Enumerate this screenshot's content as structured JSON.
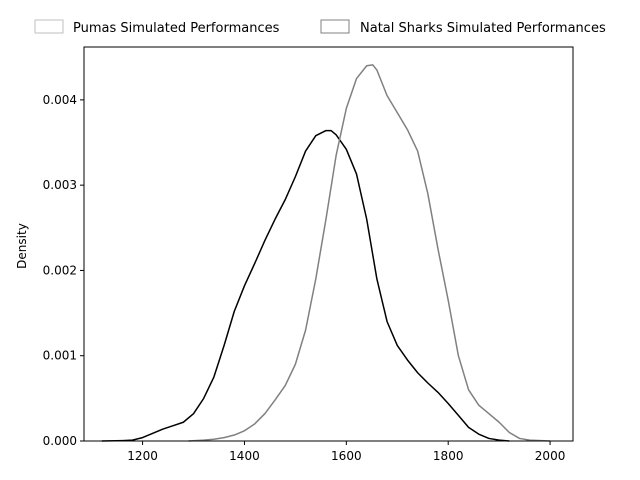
{
  "chart_data": {
    "type": "line",
    "subtype": "kde-density",
    "title": "",
    "xlabel": "",
    "ylabel": "Density",
    "xlim": [
      1085,
      2045
    ],
    "ylim": [
      0,
      0.00462
    ],
    "x_ticks": [
      1200,
      1400,
      1600,
      1800,
      2000
    ],
    "y_ticks": [
      0.0,
      0.001,
      0.002,
      0.003,
      0.004
    ],
    "y_tick_labels": [
      "0.000",
      "0.001",
      "0.002",
      "0.003",
      "0.004"
    ],
    "grid": false,
    "legend": {
      "placement": "top-outside",
      "entries": [
        {
          "label": "Pumas Simulated Performances",
          "edge_color": "#bfbfbf"
        },
        {
          "label": "Natal Sharks Simulated Performances",
          "edge_color": "#808080"
        }
      ]
    },
    "series": [
      {
        "color": "#000000",
        "points": [
          [
            1120,
            0.0
          ],
          [
            1160,
            5e-06
          ],
          [
            1180,
            1e-05
          ],
          [
            1200,
            4e-05
          ],
          [
            1220,
            9e-05
          ],
          [
            1240,
            0.00014
          ],
          [
            1260,
            0.00018
          ],
          [
            1280,
            0.00022
          ],
          [
            1300,
            0.00032
          ],
          [
            1320,
            0.0005
          ],
          [
            1340,
            0.00075
          ],
          [
            1360,
            0.00112
          ],
          [
            1380,
            0.00152
          ],
          [
            1400,
            0.00182
          ],
          [
            1420,
            0.00208
          ],
          [
            1440,
            0.00235
          ],
          [
            1460,
            0.0026
          ],
          [
            1480,
            0.00283
          ],
          [
            1500,
            0.0031
          ],
          [
            1520,
            0.0034
          ],
          [
            1540,
            0.00358
          ],
          [
            1560,
            0.00364
          ],
          [
            1570,
            0.00364
          ],
          [
            1580,
            0.00359
          ],
          [
            1600,
            0.00342
          ],
          [
            1620,
            0.00313
          ],
          [
            1640,
            0.0026
          ],
          [
            1660,
            0.0019
          ],
          [
            1680,
            0.0014
          ],
          [
            1700,
            0.00112
          ],
          [
            1720,
            0.00095
          ],
          [
            1740,
            0.0008
          ],
          [
            1760,
            0.00068
          ],
          [
            1780,
            0.00057
          ],
          [
            1800,
            0.00044
          ],
          [
            1820,
            0.0003
          ],
          [
            1840,
            0.00016
          ],
          [
            1860,
            8e-05
          ],
          [
            1880,
            3e-05
          ],
          [
            1900,
            1e-05
          ],
          [
            1920,
            0.0
          ]
        ]
      },
      {
        "color": "#808080",
        "points": [
          [
            1290,
            0.0
          ],
          [
            1320,
            1e-05
          ],
          [
            1340,
            2e-05
          ],
          [
            1360,
            4e-05
          ],
          [
            1380,
            7e-05
          ],
          [
            1400,
            0.00012
          ],
          [
            1420,
            0.0002
          ],
          [
            1440,
            0.00032
          ],
          [
            1460,
            0.00048
          ],
          [
            1480,
            0.00065
          ],
          [
            1500,
            0.0009
          ],
          [
            1520,
            0.0013
          ],
          [
            1540,
            0.0019
          ],
          [
            1560,
            0.0026
          ],
          [
            1580,
            0.00335
          ],
          [
            1600,
            0.0039
          ],
          [
            1620,
            0.00425
          ],
          [
            1640,
            0.0044
          ],
          [
            1652,
            0.00441
          ],
          [
            1660,
            0.00435
          ],
          [
            1680,
            0.00405
          ],
          [
            1700,
            0.00385
          ],
          [
            1720,
            0.00365
          ],
          [
            1740,
            0.0034
          ],
          [
            1760,
            0.0029
          ],
          [
            1780,
            0.00225
          ],
          [
            1800,
            0.00165
          ],
          [
            1820,
            0.001
          ],
          [
            1840,
            0.0006
          ],
          [
            1860,
            0.00042
          ],
          [
            1880,
            0.00032
          ],
          [
            1900,
            0.00022
          ],
          [
            1920,
            0.0001
          ],
          [
            1940,
            3e-05
          ],
          [
            1960,
            1e-05
          ],
          [
            2000,
            0.0
          ]
        ]
      }
    ]
  }
}
